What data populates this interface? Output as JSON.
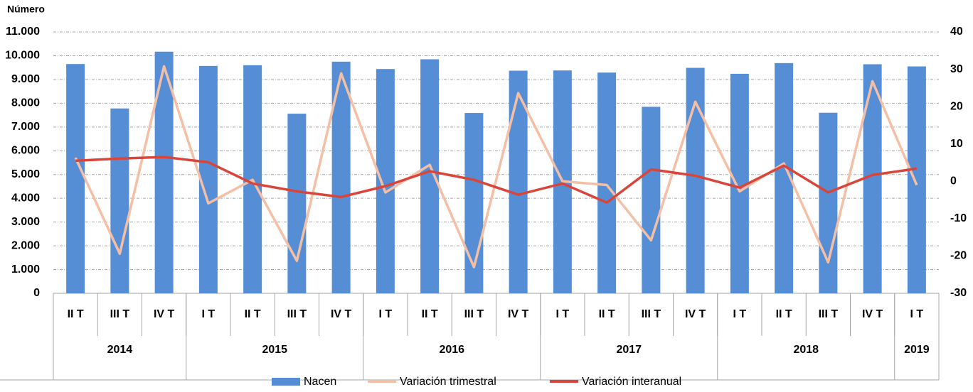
{
  "chart_data": {
    "type": "bar_line",
    "ylabel": "Número",
    "groups": [
      {
        "label": "2014",
        "quarters": [
          "II T",
          "III T",
          "IV T"
        ]
      },
      {
        "label": "2015",
        "quarters": [
          "I T",
          "II T",
          "III T",
          "IV T"
        ]
      },
      {
        "label": "2016",
        "quarters": [
          "I T",
          "II T",
          "III T",
          "IV T"
        ]
      },
      {
        "label": "2017",
        "quarters": [
          "I T",
          "II T",
          "III T",
          "IV T"
        ]
      },
      {
        "label": "2018",
        "quarters": [
          "I T",
          "II T",
          "III T",
          "IV T"
        ]
      },
      {
        "label": "2019",
        "quarters": [
          "I T"
        ]
      }
    ],
    "series": [
      {
        "name": "Nacen",
        "type": "bar",
        "color": "#558ed5",
        "values": [
          9650,
          7780,
          10170,
          9570,
          9600,
          7560,
          9750,
          9440,
          9850,
          7590,
          9370,
          9380,
          9290,
          7850,
          9490,
          9240,
          9690,
          7600,
          9640,
          9550
        ]
      },
      {
        "name": "Variación trimestral",
        "type": "line",
        "axis": "y2",
        "color": "#f4bfa5",
        "values": [
          6.3,
          -19.4,
          30.8,
          -5.9,
          0.4,
          -21.3,
          28.9,
          -3.0,
          4.4,
          -23.0,
          23.6,
          0,
          -1.0,
          -15.8,
          21.3,
          -2.7,
          4.8,
          -21.7,
          26.8,
          -1.0
        ]
      },
      {
        "name": "Variación interanual",
        "type": "line",
        "axis": "y2",
        "color": "#d9453a",
        "values": [
          5.5,
          6.1,
          6.5,
          5.1,
          -0.6,
          -2.7,
          -4.2,
          -1.3,
          2.7,
          0.4,
          -3.6,
          -0.6,
          -5.7,
          3.2,
          1.5,
          -1.7,
          4.2,
          -3.0,
          1.7,
          3.4
        ]
      }
    ],
    "ylim": [
      0,
      11000
    ],
    "yticks": [
      0,
      {
        "value": 1000,
        "label": "1.000"
      },
      {
        "value": 2000,
        "label": "2.000"
      },
      {
        "value": 3000,
        "label": "3.000"
      },
      {
        "value": 4000,
        "label": "4.000"
      },
      {
        "value": 5000,
        "label": "5.000"
      },
      {
        "value": 6000,
        "label": "6.000"
      },
      {
        "value": 7000,
        "label": "7.000"
      },
      {
        "value": 8000,
        "label": "8.000"
      },
      {
        "value": 9000,
        "label": "9.000"
      },
      {
        "value": 10000,
        "label": "10.000"
      },
      {
        "value": 11000,
        "label": "11.000"
      }
    ],
    "y2lim": [
      -30,
      40
    ],
    "y2ticks": [
      -30,
      -20,
      -10,
      0,
      10,
      20,
      30,
      40
    ],
    "grid": true
  }
}
